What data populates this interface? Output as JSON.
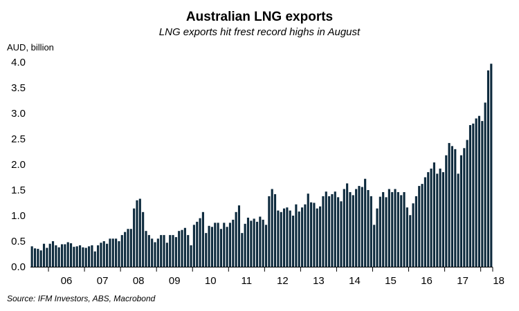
{
  "chart_data": {
    "type": "bar",
    "title": "Australian LNG exports",
    "subtitle": "LNG exports hit frest record highs in August",
    "ylabel": "AUD, billion",
    "source": "Source: IFM Investors, ABS, Macrobond",
    "ylim": [
      0,
      4.0
    ],
    "yticks": [
      "0.0",
      "0.5",
      "1.0",
      "1.5",
      "2.0",
      "2.5",
      "3.0",
      "3.5",
      "4.0"
    ],
    "xticks": [
      {
        "label": "06",
        "index": 6
      },
      {
        "label": "07",
        "index": 18
      },
      {
        "label": "08",
        "index": 30
      },
      {
        "label": "09",
        "index": 42
      },
      {
        "label": "10",
        "index": 54
      },
      {
        "label": "11",
        "index": 66
      },
      {
        "label": "12",
        "index": 78
      },
      {
        "label": "13",
        "index": 90
      },
      {
        "label": "14",
        "index": 102
      },
      {
        "label": "15",
        "index": 114
      },
      {
        "label": "16",
        "index": 126
      },
      {
        "label": "17",
        "index": 138
      },
      {
        "label": "18",
        "index": 150
      }
    ],
    "bar_color": "#0d2a3d",
    "grid": false,
    "series": [
      {
        "values": [
          0.4,
          0.36,
          0.35,
          0.32,
          0.45,
          0.37,
          0.45,
          0.5,
          0.42,
          0.38,
          0.44,
          0.44,
          0.48,
          0.46,
          0.39,
          0.4,
          0.42,
          0.38,
          0.37,
          0.4,
          0.42,
          0.3,
          0.42,
          0.47,
          0.5,
          0.45,
          0.55,
          0.55,
          0.55,
          0.5,
          0.62,
          0.68,
          0.74,
          0.74,
          1.14,
          1.3,
          1.33,
          1.07,
          0.7,
          0.62,
          0.55,
          0.48,
          0.55,
          0.62,
          0.62,
          0.47,
          0.62,
          0.62,
          0.58,
          0.7,
          0.72,
          0.76,
          0.62,
          0.42,
          0.82,
          0.88,
          0.95,
          1.07,
          0.66,
          0.8,
          0.78,
          0.86,
          0.86,
          0.74,
          0.86,
          0.78,
          0.86,
          0.92,
          1.07,
          1.2,
          0.66,
          0.84,
          0.96,
          0.9,
          0.94,
          0.88,
          0.98,
          0.92,
          0.82,
          1.38,
          1.52,
          1.42,
          1.1,
          1.07,
          1.14,
          1.16,
          1.1,
          1.0,
          1.22,
          1.08,
          1.16,
          1.22,
          1.43,
          1.26,
          1.25,
          1.14,
          1.18,
          1.38,
          1.47,
          1.38,
          1.42,
          1.47,
          1.36,
          1.28,
          1.52,
          1.63,
          1.46,
          1.4,
          1.52,
          1.58,
          1.56,
          1.72,
          1.5,
          1.38,
          0.82,
          1.14,
          1.37,
          1.46,
          1.36,
          1.52,
          1.46,
          1.52,
          1.46,
          1.4,
          1.46,
          1.16,
          1.01,
          1.24,
          1.38,
          1.58,
          1.62,
          1.75,
          1.85,
          1.92,
          2.04,
          1.82,
          1.92,
          1.85,
          2.18,
          2.42,
          2.36,
          2.3,
          1.82,
          2.18,
          2.32,
          2.48,
          2.77,
          2.8,
          2.9,
          2.95,
          2.85,
          3.21,
          3.84,
          3.97
        ]
      }
    ]
  }
}
